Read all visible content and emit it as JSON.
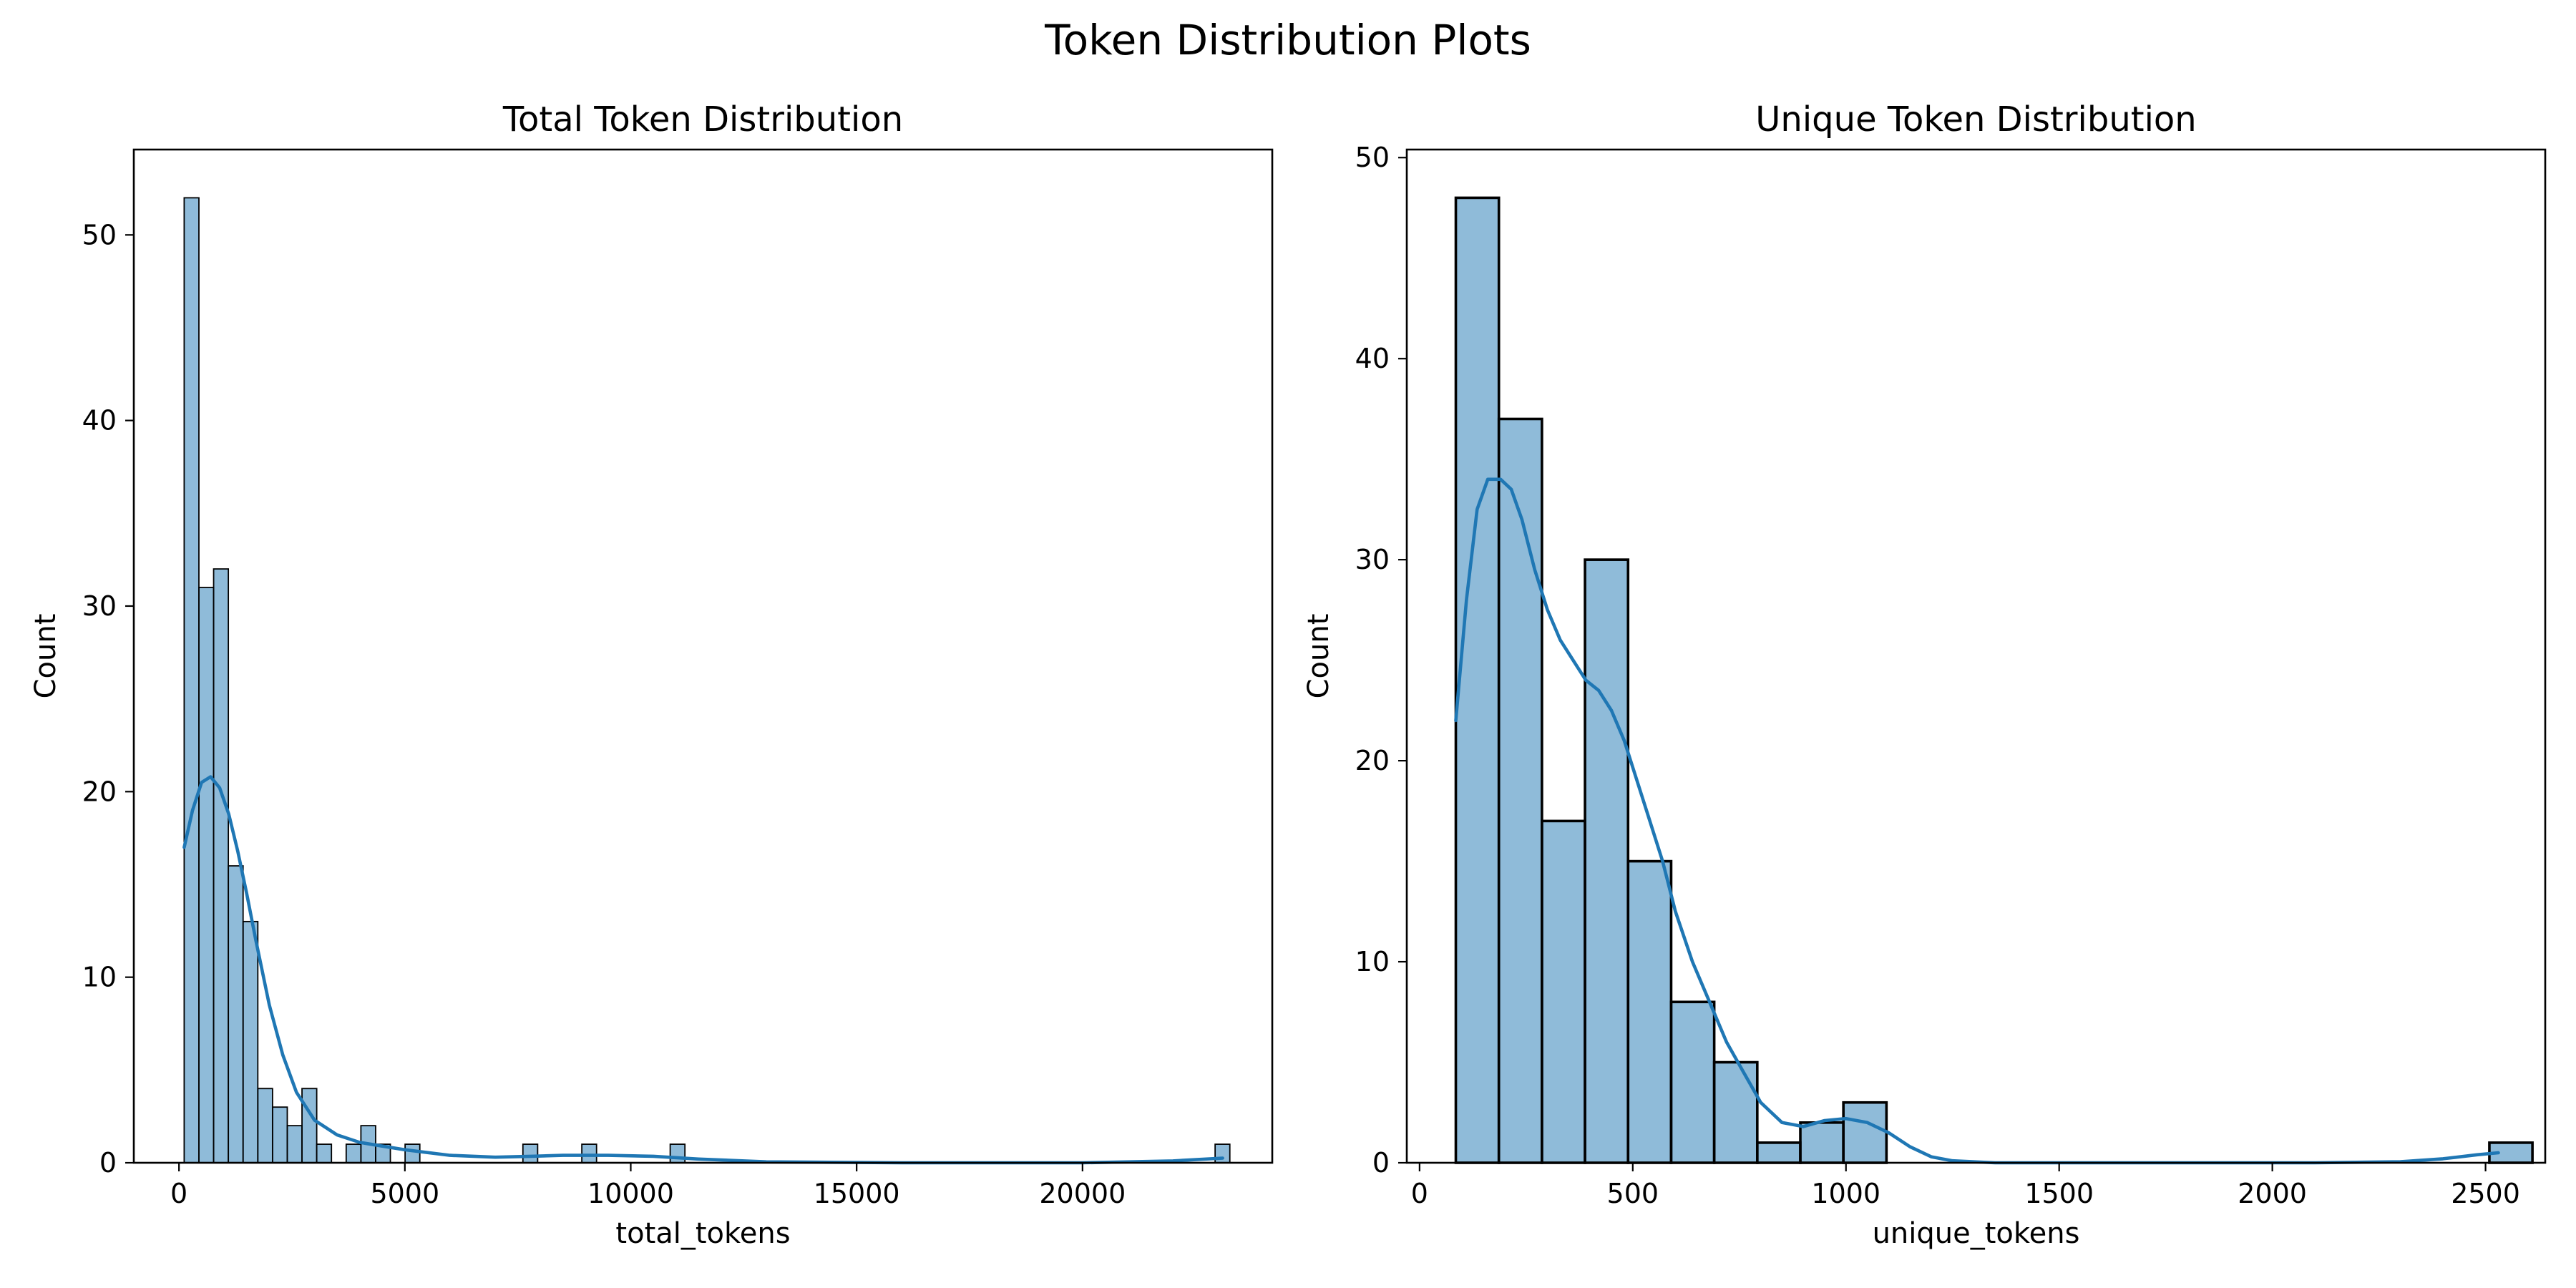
{
  "figure": {
    "title": "Token Distribution Plots",
    "colors": {
      "bar_fill": "#1f77b4",
      "bar_edge": "#000000",
      "kde_line": "#1f77b4"
    }
  },
  "chart_data": [
    {
      "type": "bar",
      "subtype": "histogram",
      "title": "Total Token Distribution",
      "xlabel": "total_tokens",
      "ylabel": "Count",
      "xlim": [
        -1000,
        24200
      ],
      "ylim": [
        0,
        54.6
      ],
      "xticks": [
        0,
        5000,
        10000,
        15000,
        20000
      ],
      "yticks": [
        0,
        10,
        20,
        30,
        40,
        50
      ],
      "bin_start": 115,
      "bin_width": 326,
      "counts": [
        52,
        31,
        32,
        16,
        13,
        4,
        3,
        2,
        4,
        1,
        0,
        1,
        2,
        1,
        0,
        1,
        0,
        0,
        0,
        0,
        0,
        0,
        0,
        1,
        0,
        0,
        0,
        1,
        0,
        0,
        0,
        0,
        0,
        1,
        0,
        0,
        0,
        0,
        0,
        0,
        0,
        0,
        0,
        0,
        0,
        0,
        0,
        0,
        0,
        0,
        0,
        0,
        0,
        0,
        0,
        0,
        0,
        0,
        0,
        0,
        0,
        0,
        0,
        0,
        0,
        0,
        0,
        0,
        0,
        0,
        1
      ],
      "kde": {
        "x": [
          115,
          300,
          500,
          700,
          900,
          1100,
          1300,
          1500,
          1700,
          2000,
          2300,
          2600,
          3000,
          3500,
          4000,
          4500,
          5000,
          6000,
          7000,
          7800,
          8500,
          9500,
          10500,
          11500,
          13000,
          16000,
          20000,
          22000,
          23100
        ],
        "y": [
          17,
          19,
          20.5,
          20.8,
          20.2,
          18.8,
          16.8,
          14.5,
          12,
          8.5,
          5.8,
          3.8,
          2.3,
          1.5,
          1.1,
          0.9,
          0.7,
          0.4,
          0.3,
          0.35,
          0.4,
          0.4,
          0.35,
          0.2,
          0.05,
          0,
          0,
          0.1,
          0.25
        ]
      }
    },
    {
      "type": "bar",
      "subtype": "histogram",
      "title": "Unique Token Distribution",
      "xlabel": "unique_tokens",
      "ylabel": "Count",
      "xlim": [
        -30,
        2640
      ],
      "ylim": [
        0,
        50.4
      ],
      "xticks": [
        0,
        500,
        1000,
        1500,
        2000,
        2500
      ],
      "yticks": [
        0,
        10,
        20,
        30,
        40,
        50
      ],
      "bin_start": 85,
      "bin_width": 101,
      "counts": [
        48,
        37,
        17,
        30,
        15,
        8,
        5,
        1,
        2,
        3,
        0,
        0,
        0,
        0,
        0,
        0,
        0,
        0,
        0,
        0,
        0,
        0,
        0,
        0,
        1
      ],
      "kde": {
        "x": [
          85,
          110,
          135,
          160,
          190,
          215,
          240,
          270,
          300,
          330,
          360,
          390,
          420,
          450,
          480,
          510,
          540,
          570,
          600,
          640,
          680,
          720,
          760,
          800,
          850,
          900,
          950,
          1000,
          1050,
          1100,
          1150,
          1200,
          1250,
          1350,
          1500,
          1800,
          2100,
          2300,
          2400,
          2480,
          2530
        ],
        "y": [
          22,
          28,
          32.5,
          34,
          34,
          33.5,
          32,
          29.5,
          27.5,
          26,
          25,
          24,
          23.5,
          22.5,
          21,
          19,
          17,
          15,
          12.5,
          10,
          8,
          6,
          4.5,
          3,
          2,
          1.8,
          2.1,
          2.2,
          2,
          1.5,
          0.8,
          0.3,
          0.1,
          0,
          0,
          0,
          0,
          0.05,
          0.2,
          0.4,
          0.5
        ]
      }
    }
  ]
}
